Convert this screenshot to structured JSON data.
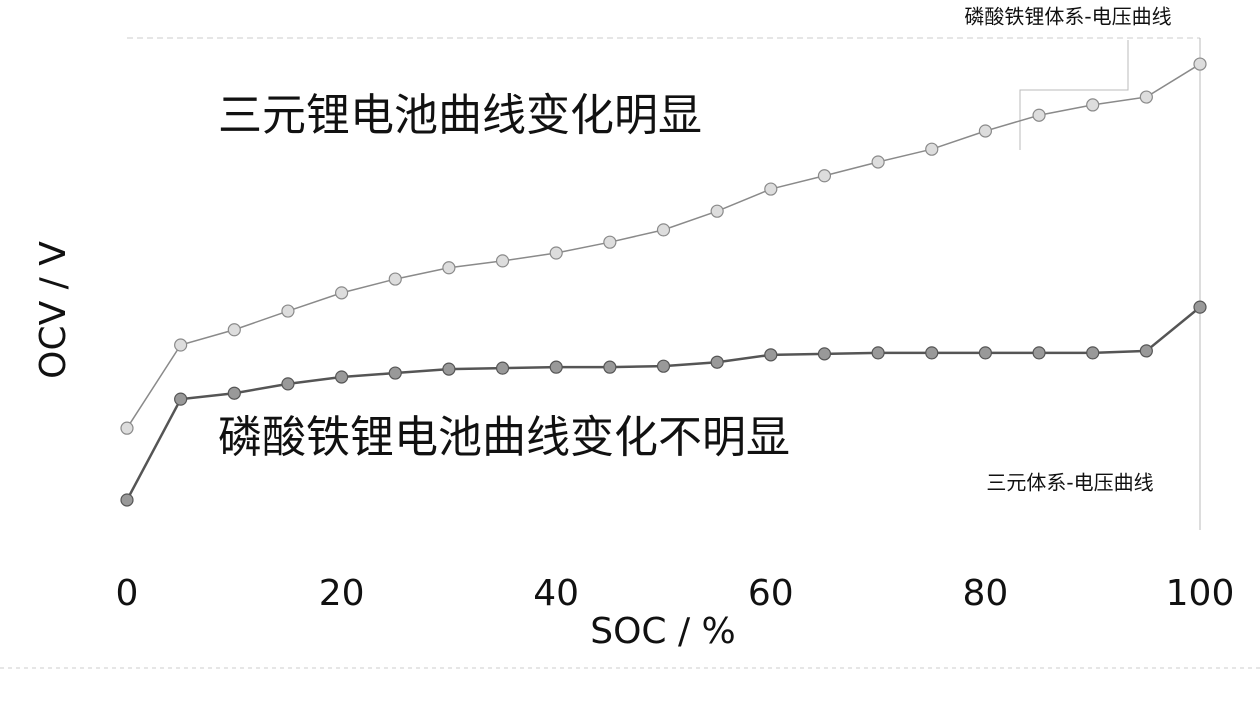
{
  "chart_data": {
    "type": "line",
    "x_label": "SOC / %",
    "y_label": "OCV / V",
    "annotations": [
      "三元锂电池曲线变化明显",
      "磷酸铁锂电池曲线变化不明显"
    ],
    "x": [
      0,
      5,
      10,
      15,
      20,
      25,
      30,
      35,
      40,
      45,
      50,
      55,
      60,
      65,
      70,
      75,
      80,
      85,
      90,
      95,
      100
    ],
    "xlim": [
      0,
      100
    ],
    "xticks": [
      0,
      20,
      40,
      60,
      80,
      100
    ],
    "ylim": [
      0,
      100
    ],
    "series": [
      {
        "name": "磷酸铁锂体系-电压曲线",
        "color": "#8a8a8a",
        "values": [
          20.7,
          37.6,
          40.7,
          44.5,
          48.2,
          51.0,
          53.3,
          54.7,
          56.3,
          58.5,
          61.0,
          64.8,
          69.3,
          72.0,
          74.8,
          77.4,
          81.1,
          84.3,
          86.4,
          88.0,
          94.7
        ]
      },
      {
        "name": "三元体系-电压曲线",
        "color": "#555555",
        "values": [
          6.1,
          26.6,
          27.8,
          29.7,
          31.1,
          31.9,
          32.7,
          32.9,
          33.1,
          33.1,
          33.3,
          34.1,
          35.6,
          35.8,
          36.0,
          36.0,
          36.0,
          36.0,
          36.0,
          36.4,
          45.3
        ]
      }
    ]
  }
}
